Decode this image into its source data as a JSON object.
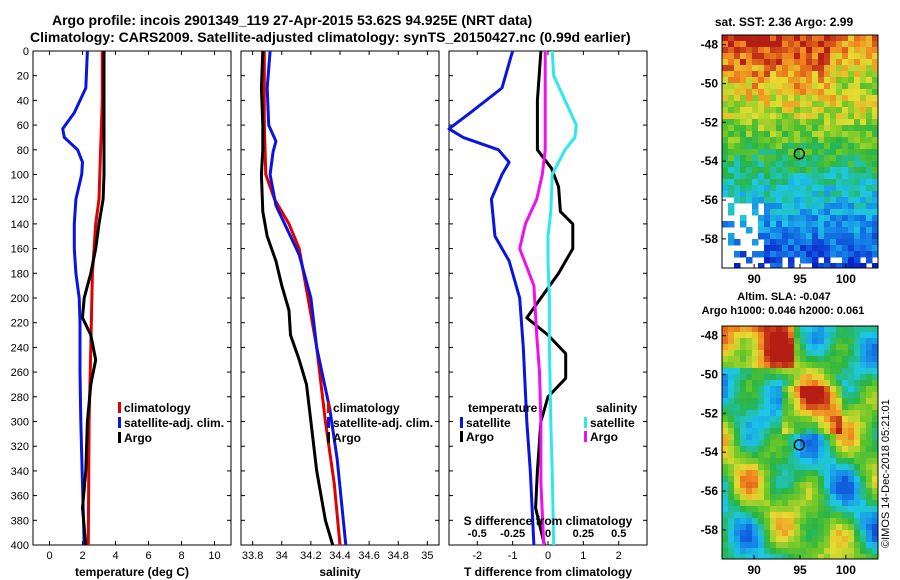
{
  "titles": {
    "line1": "Argo profile: incois 2901349_119 27-Apr-2015 53.62S 94.925E (NRT data)",
    "line2": "Climatology: CARS2009. Satellite-adjusted climatology: synTS_20150427.nc (0.99d earlier)"
  },
  "credit": "©IMOS 14-Dec-2018 05:21:01",
  "colors": {
    "climatology": "#e00000",
    "satellite": "#0a14e0",
    "argo": "#000000",
    "sal_satellite": "#2ee8ee",
    "sal_argo": "#ee10ee"
  },
  "chart_data": [
    {
      "type": "line",
      "name": "temperature",
      "xlabel": "temperature (deg C)",
      "ylabel": "",
      "xlim": [
        -1,
        11
      ],
      "ylim": [
        400,
        0
      ],
      "xticks": [
        0,
        2,
        4,
        6,
        8,
        10
      ],
      "yticks": [
        0,
        20,
        40,
        60,
        80,
        100,
        120,
        140,
        160,
        180,
        200,
        220,
        240,
        260,
        280,
        300,
        320,
        340,
        360,
        380,
        400
      ],
      "legend": {
        "position": "bottom-right",
        "labels": [
          "climatology",
          "satellite-adj. clim.",
          "Argo"
        ]
      },
      "series": [
        {
          "name": "climatology",
          "color": "#e00000",
          "points": [
            [
              3.2,
              0
            ],
            [
              3.2,
              40
            ],
            [
              3.1,
              80
            ],
            [
              3,
              120
            ],
            [
              2.8,
              140
            ],
            [
              2.6,
              180
            ],
            [
              2.5,
              240
            ],
            [
              2.4,
              300
            ],
            [
              2.35,
              400
            ]
          ]
        },
        {
          "name": "satellite-adj. clim.",
          "color": "#0a14e0",
          "points": [
            [
              2.3,
              0
            ],
            [
              2.2,
              30
            ],
            [
              1.5,
              50
            ],
            [
              0.8,
              63
            ],
            [
              0.9,
              70
            ],
            [
              1.7,
              80
            ],
            [
              2,
              90
            ],
            [
              1.95,
              100
            ],
            [
              1.6,
              120
            ],
            [
              1.5,
              140
            ],
            [
              1.5,
              160
            ],
            [
              1.6,
              180
            ],
            [
              1.8,
              200
            ],
            [
              1.85,
              220
            ],
            [
              1.85,
              260
            ],
            [
              1.9,
              300
            ],
            [
              2,
              350
            ],
            [
              2.1,
              400
            ]
          ]
        },
        {
          "name": "Argo",
          "color": "#000000",
          "points": [
            [
              3.3,
              0
            ],
            [
              3.3,
              40
            ],
            [
              3.3,
              80
            ],
            [
              3.3,
              100
            ],
            [
              3.25,
              120
            ],
            [
              3,
              140
            ],
            [
              2.8,
              160
            ],
            [
              2.5,
              180
            ],
            [
              2.1,
              200
            ],
            [
              2,
              216
            ],
            [
              2.5,
              230
            ],
            [
              2.8,
              250
            ],
            [
              2.5,
              270
            ],
            [
              2.3,
              300
            ],
            [
              2.2,
              340
            ],
            [
              2,
              370
            ],
            [
              2.2,
              400
            ]
          ]
        }
      ]
    },
    {
      "type": "line",
      "name": "salinity",
      "xlabel": "salinity",
      "ylabel": "",
      "xlim": [
        33.72,
        35.08
      ],
      "ylim": [
        400,
        0
      ],
      "xticks": [
        33.8,
        34,
        34.2,
        34.4,
        34.6,
        34.8,
        35
      ],
      "xtick_labels": [
        "33.8",
        "34",
        "34.2",
        "34.4",
        "34.6",
        "34.8",
        "35"
      ],
      "yticks": [
        0,
        20,
        40,
        60,
        80,
        100,
        120,
        140,
        160,
        180,
        200,
        220,
        240,
        260,
        280,
        300,
        320,
        340,
        360,
        380,
        400
      ],
      "legend": {
        "position": "bottom-right",
        "labels": [
          "climatology",
          "satellite-adj. clim.",
          "Argo"
        ]
      },
      "series": [
        {
          "name": "climatology",
          "color": "#e00000",
          "points": [
            [
              33.88,
              0
            ],
            [
              33.88,
              60
            ],
            [
              33.89,
              100
            ],
            [
              33.95,
              120
            ],
            [
              34.05,
              140
            ],
            [
              34.12,
              160
            ],
            [
              34.18,
              200
            ],
            [
              34.24,
              240
            ],
            [
              34.3,
              300
            ],
            [
              34.36,
              350
            ],
            [
              34.4,
              400
            ]
          ]
        },
        {
          "name": "satellite-adj. clim.",
          "color": "#0a14e0",
          "points": [
            [
              33.92,
              0
            ],
            [
              33.9,
              30
            ],
            [
              33.91,
              60
            ],
            [
              33.96,
              73
            ],
            [
              33.94,
              82
            ],
            [
              33.92,
              100
            ],
            [
              33.96,
              125
            ],
            [
              34.04,
              145
            ],
            [
              34.12,
              165
            ],
            [
              34.2,
              200
            ],
            [
              34.24,
              240
            ],
            [
              34.33,
              290
            ],
            [
              34.38,
              330
            ],
            [
              34.44,
              400
            ]
          ]
        },
        {
          "name": "Argo",
          "color": "#000000",
          "points": [
            [
              33.87,
              0
            ],
            [
              33.86,
              30
            ],
            [
              33.87,
              60
            ],
            [
              33.87,
              80
            ],
            [
              33.86,
              100
            ],
            [
              33.87,
              130
            ],
            [
              33.9,
              150
            ],
            [
              33.96,
              170
            ],
            [
              34,
              190
            ],
            [
              34.05,
              210
            ],
            [
              34.06,
              230
            ],
            [
              34.12,
              250
            ],
            [
              34.17,
              270
            ],
            [
              34.2,
              300
            ],
            [
              34.24,
              340
            ],
            [
              34.3,
              380
            ],
            [
              34.35,
              400
            ]
          ]
        }
      ]
    },
    {
      "type": "line",
      "name": "difference",
      "xlabel": "T difference from climatology",
      "top_label": "S difference from climatology",
      "xlim": [
        -2.8,
        2.8
      ],
      "ylim": [
        400,
        0
      ],
      "xticks": [
        -2,
        -1,
        0,
        1,
        2
      ],
      "xticks_S": [
        -0.5,
        -0.25,
        0,
        0.25,
        0.5
      ],
      "xtick_labels_S": [
        "-0.5",
        "-0.25",
        "0",
        "0.25",
        "0.5"
      ],
      "yticks": [
        0,
        20,
        40,
        60,
        80,
        100,
        120,
        140,
        160,
        180,
        200,
        220,
        240,
        260,
        280,
        300,
        320,
        340,
        360,
        380,
        400
      ],
      "legend": {
        "position": "bottom",
        "temperature_title": "temperature",
        "salinity_title": "salinity",
        "labels": [
          "satellite",
          "Argo",
          "satellite",
          "Argo"
        ]
      },
      "series": [
        {
          "name": "temperature satellite",
          "color": "#0a14e0",
          "points": [
            [
              -1,
              0
            ],
            [
              -1.3,
              30
            ],
            [
              -2.2,
              50
            ],
            [
              -2.8,
              63
            ],
            [
              -2.4,
              70
            ],
            [
              -1.4,
              80
            ],
            [
              -1.1,
              90
            ],
            [
              -1.3,
              100
            ],
            [
              -1.6,
              120
            ],
            [
              -1.5,
              150
            ],
            [
              -1.1,
              170
            ],
            [
              -0.8,
              200
            ],
            [
              -0.7,
              240
            ],
            [
              -0.6,
              300
            ],
            [
              -0.5,
              340
            ],
            [
              -0.4,
              400
            ]
          ]
        },
        {
          "name": "temperature Argo",
          "color": "#000000",
          "points": [
            [
              -0.2,
              0
            ],
            [
              -0.3,
              40
            ],
            [
              -0.3,
              80
            ],
            [
              0.1,
              95
            ],
            [
              0.3,
              110
            ],
            [
              0.35,
              130
            ],
            [
              0.7,
              140
            ],
            [
              0.7,
              160
            ],
            [
              0.3,
              180
            ],
            [
              -0.2,
              200
            ],
            [
              -0.6,
              216
            ],
            [
              0,
              230
            ],
            [
              0.5,
              245
            ],
            [
              0.5,
              265
            ],
            [
              0,
              280
            ],
            [
              -0.2,
              300
            ],
            [
              -0.3,
              340
            ],
            [
              -0.35,
              370
            ],
            [
              -0.1,
              400
            ]
          ]
        },
        {
          "name": "salinity satellite",
          "color": "#2ee8ee",
          "points": [
            [
              0.03,
              0
            ],
            [
              0.04,
              20
            ],
            [
              0.12,
              40
            ],
            [
              0.2,
              60
            ],
            [
              0.19,
              70
            ],
            [
              0.12,
              80
            ],
            [
              0.03,
              100
            ],
            [
              0.02,
              130
            ],
            [
              0,
              150
            ],
            [
              0,
              170
            ],
            [
              0.01,
              200
            ],
            [
              0.01,
              240
            ],
            [
              0.02,
              300
            ],
            [
              0.03,
              340
            ],
            [
              0.04,
              400
            ]
          ]
        },
        {
          "name": "salinity Argo",
          "color": "#ee10ee",
          "points": [
            [
              -0.02,
              0
            ],
            [
              -0.02,
              40
            ],
            [
              -0.02,
              80
            ],
            [
              -0.04,
              100
            ],
            [
              -0.08,
              120
            ],
            [
              -0.16,
              140
            ],
            [
              -0.2,
              160
            ],
            [
              -0.1,
              190
            ],
            [
              -0.08,
              230
            ],
            [
              -0.06,
              260
            ],
            [
              -0.05,
              300
            ],
            [
              -0.05,
              350
            ],
            [
              -0.03,
              400
            ]
          ]
        }
      ]
    },
    {
      "type": "heatmap",
      "name": "sst-map",
      "title": "sat. SST: 2.36 Argo: 2.99",
      "xlim": [
        86.5,
        103.5
      ],
      "ylim": [
        -59.5,
        -47.5
      ],
      "xticks": [
        90,
        95,
        100
      ],
      "yticks": [
        -48,
        -50,
        -52,
        -54,
        -56,
        -58
      ],
      "ytick_labels": [
        "-48",
        "-50",
        "-52",
        "-54",
        "-56",
        "-58"
      ],
      "marker": {
        "lon": 94.925,
        "lat": -53.62
      }
    },
    {
      "type": "heatmap",
      "name": "sla-map",
      "title_line1": "Altim. SLA: -0.047",
      "title_line2": "Argo h1000: 0.046 h2000: 0.061",
      "xlim": [
        86.5,
        103.5
      ],
      "ylim": [
        -59.5,
        -47.5
      ],
      "xticks": [
        90,
        95,
        100
      ],
      "yticks": [
        -48,
        -50,
        -52,
        -54,
        -56,
        -58
      ],
      "ytick_labels": [
        "-48",
        "-50",
        "-52",
        "-54",
        "-56",
        "-58"
      ],
      "marker": {
        "lon": 94.925,
        "lat": -53.62
      }
    }
  ]
}
